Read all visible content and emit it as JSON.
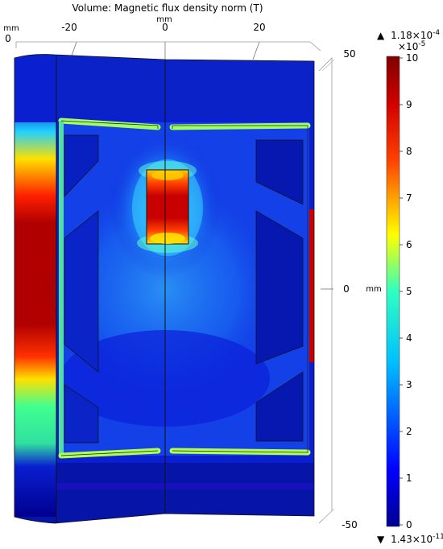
{
  "title": "Volume: Magnetic flux density norm (T)",
  "axes": {
    "top_unit": "mm",
    "left_unit": "mm",
    "top_ticks": [
      "-20",
      "0",
      "20"
    ],
    "left_tick": "0",
    "right_unit": "mm",
    "right_ticks": [
      "50",
      "0",
      "-50"
    ]
  },
  "colorbar": {
    "max_label_prefix": "▲",
    "max_label": "1.18×10",
    "max_exp": "-4",
    "scale_label": "×10",
    "scale_exp": "-5",
    "ticks": [
      "10",
      "9",
      "8",
      "7",
      "6",
      "5",
      "4",
      "3",
      "2",
      "1",
      "0"
    ],
    "min_label_prefix": "▼",
    "min_label": "1.43×10",
    "min_exp": "-11",
    "range": [
      0,
      10
    ],
    "colormap": "rainbow"
  },
  "colors": {
    "low": "#00008f",
    "background_field": "#0a1fd0",
    "mid": "#00c8ff",
    "high": "#ffe000",
    "max": "#800000"
  }
}
